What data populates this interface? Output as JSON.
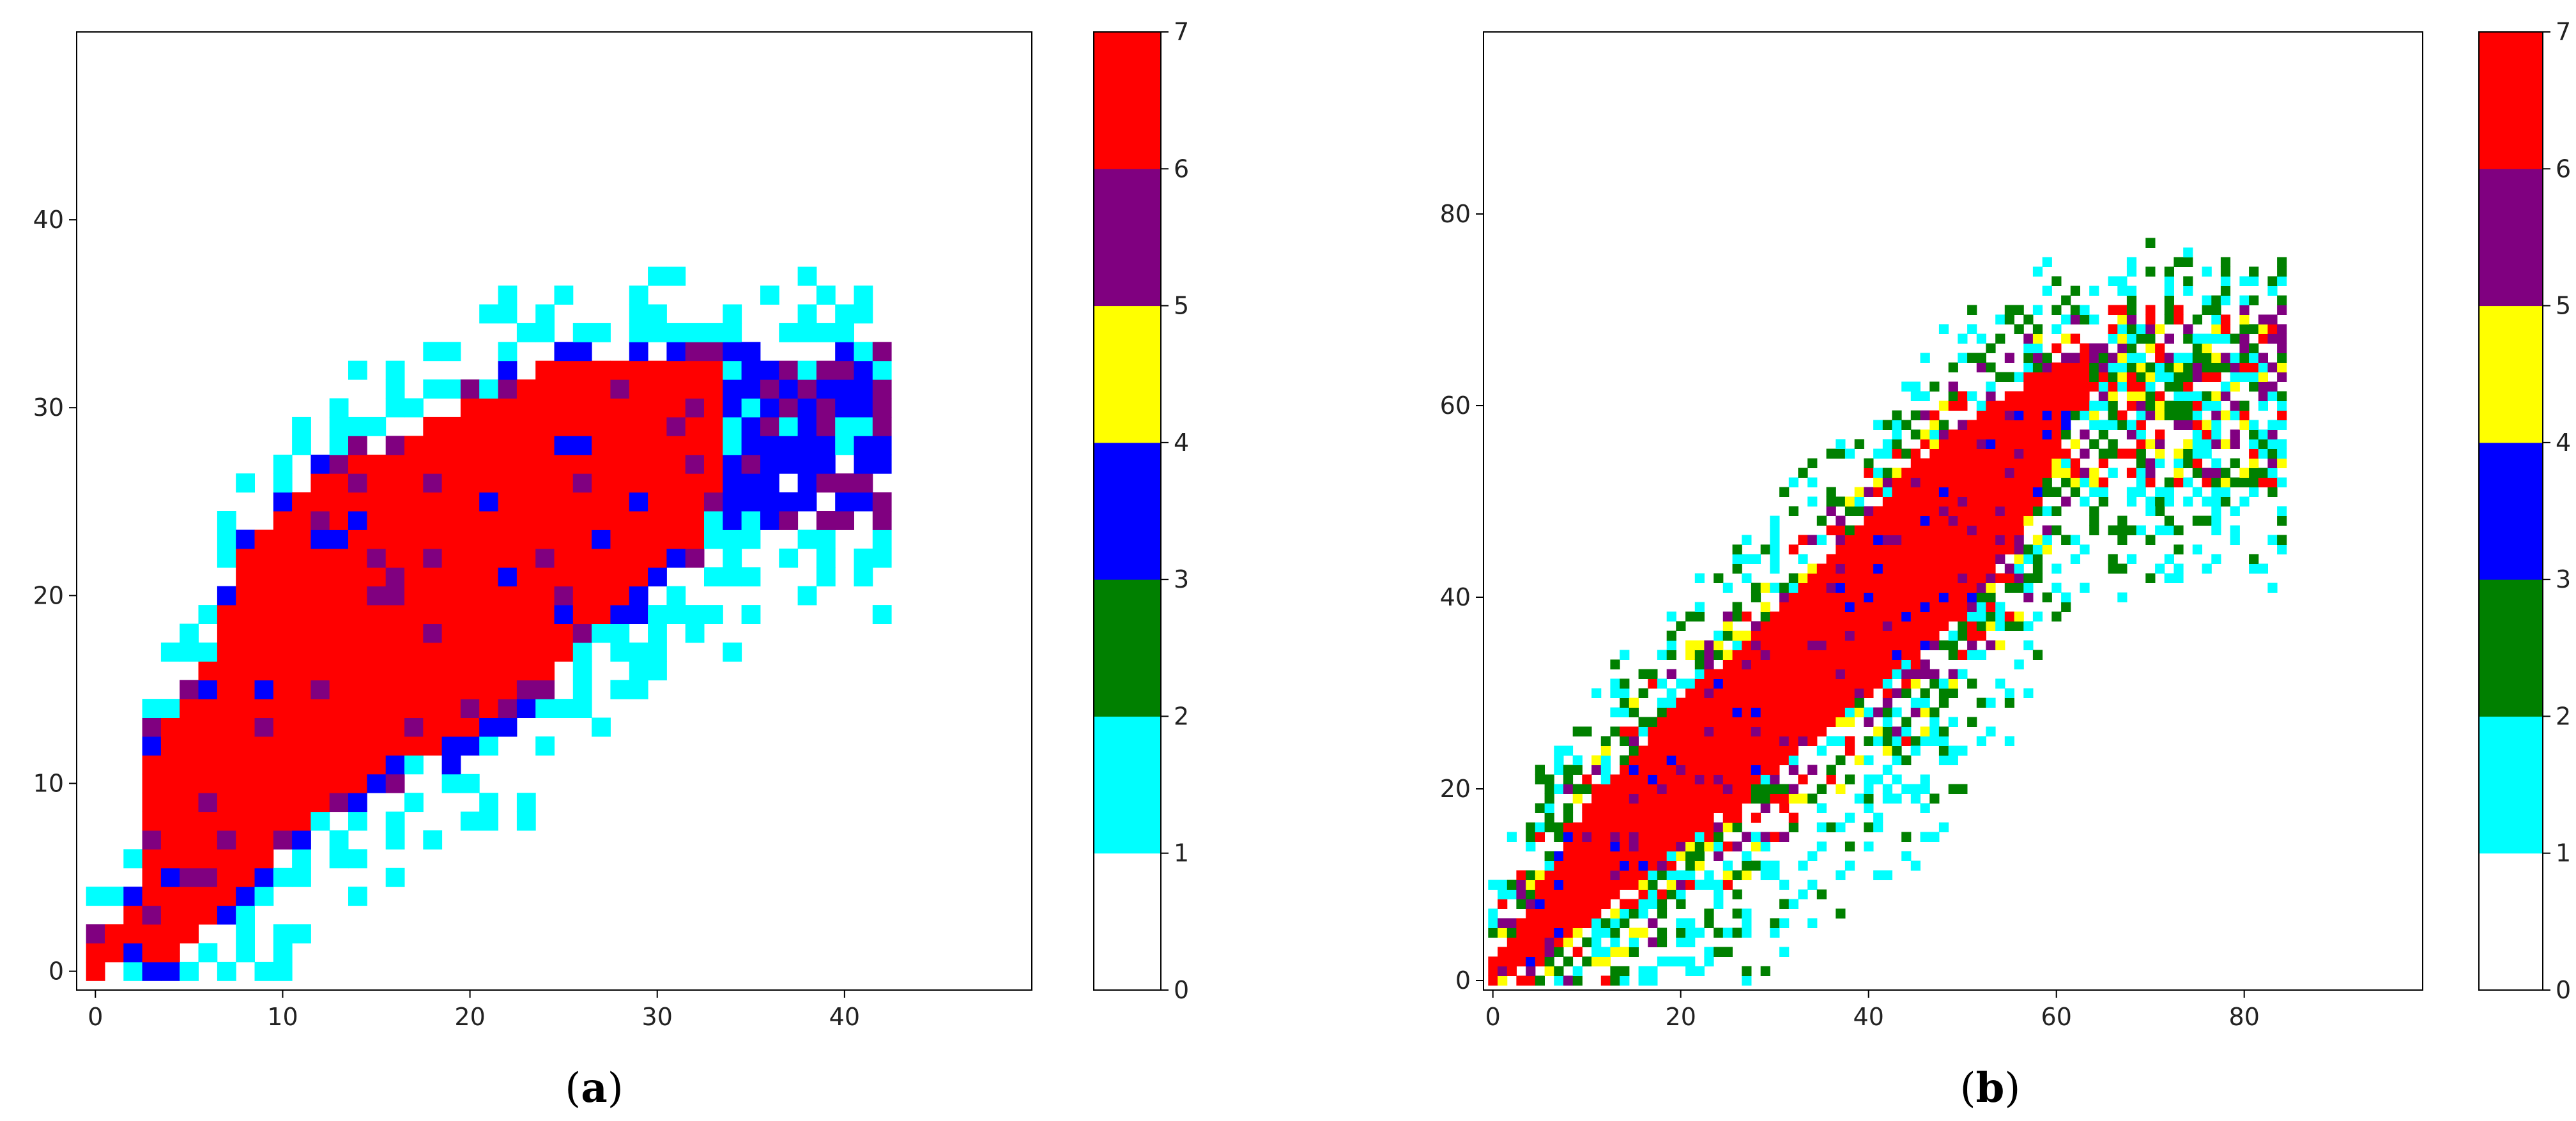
{
  "chart_data": [
    {
      "type": "heatmap",
      "caption": "(a)",
      "caption_prefix": "(",
      "caption_letter": "a",
      "caption_suffix": ")",
      "xlim": [
        -1,
        50
      ],
      "ylim": [
        -1,
        50
      ],
      "xticks": [
        0,
        10,
        20,
        30,
        40
      ],
      "yticks": [
        0,
        10,
        20,
        30,
        40
      ],
      "colorbar": {
        "ticks": [
          0,
          1,
          2,
          3,
          4,
          5,
          6,
          7
        ],
        "bands": [
          {
            "from": 0,
            "to": 1,
            "color": "#ffffff"
          },
          {
            "from": 1,
            "to": 2,
            "color": "#00ffff"
          },
          {
            "from": 2,
            "to": 3,
            "color": "#008000"
          },
          {
            "from": 3,
            "to": 4,
            "color": "#0000ff"
          },
          {
            "from": 4,
            "to": 5,
            "color": "#ffff00"
          },
          {
            "from": 5,
            "to": 6,
            "color": "#800080"
          },
          {
            "from": 6,
            "to": 7,
            "color": "#ff0000"
          }
        ]
      },
      "band_profile": {
        "x_range": [
          0,
          42
        ],
        "red_upper": [
          [
            0,
            1
          ],
          [
            2,
            3
          ],
          [
            3,
            12
          ],
          [
            6,
            16
          ],
          [
            8,
            22
          ],
          [
            12,
            26
          ],
          [
            16,
            28
          ],
          [
            20,
            30
          ],
          [
            24,
            32
          ],
          [
            30,
            32
          ],
          [
            32,
            32
          ]
        ],
        "red_lower": [
          [
            0,
            0
          ],
          [
            4,
            1
          ],
          [
            8,
            5
          ],
          [
            12,
            9
          ],
          [
            16,
            11
          ],
          [
            20,
            13
          ],
          [
            24,
            16
          ],
          [
            28,
            20
          ],
          [
            32,
            23
          ],
          [
            33,
            25
          ]
        ],
        "spread_upper": 6,
        "spread_lower": 8,
        "max_x": 42
      }
    },
    {
      "type": "heatmap",
      "caption": "(b)",
      "caption_prefix": "(",
      "caption_letter": "b",
      "caption_suffix": ")",
      "xlim": [
        -1,
        99
      ],
      "ylim": [
        -1,
        99
      ],
      "xticks": [
        0,
        20,
        40,
        60,
        80
      ],
      "yticks": [
        0,
        20,
        40,
        60,
        80
      ],
      "colorbar": {
        "ticks": [
          0,
          1,
          2,
          3,
          4,
          5,
          6,
          7
        ],
        "bands": [
          {
            "from": 0,
            "to": 1,
            "color": "#ffffff"
          },
          {
            "from": 1,
            "to": 2,
            "color": "#00ffff"
          },
          {
            "from": 2,
            "to": 3,
            "color": "#008000"
          },
          {
            "from": 3,
            "to": 4,
            "color": "#0000ff"
          },
          {
            "from": 4,
            "to": 5,
            "color": "#ffff00"
          },
          {
            "from": 5,
            "to": 6,
            "color": "#800080"
          },
          {
            "from": 6,
            "to": 7,
            "color": "#ff0000"
          }
        ]
      },
      "band_profile": {
        "x_range": [
          0,
          84
        ],
        "red_upper": [
          [
            0,
            1
          ],
          [
            5,
            10
          ],
          [
            10,
            18
          ],
          [
            20,
            29
          ],
          [
            30,
            38
          ],
          [
            40,
            48
          ],
          [
            50,
            58
          ],
          [
            60,
            64
          ],
          [
            62,
            65
          ]
        ],
        "red_lower": [
          [
            0,
            0
          ],
          [
            5,
            2
          ],
          [
            10,
            6
          ],
          [
            20,
            14
          ],
          [
            30,
            22
          ],
          [
            40,
            30
          ],
          [
            50,
            38
          ],
          [
            56,
            46
          ],
          [
            60,
            55
          ],
          [
            62,
            60
          ]
        ],
        "spread_upper": 14,
        "spread_lower": 22,
        "max_x": 84
      }
    }
  ]
}
